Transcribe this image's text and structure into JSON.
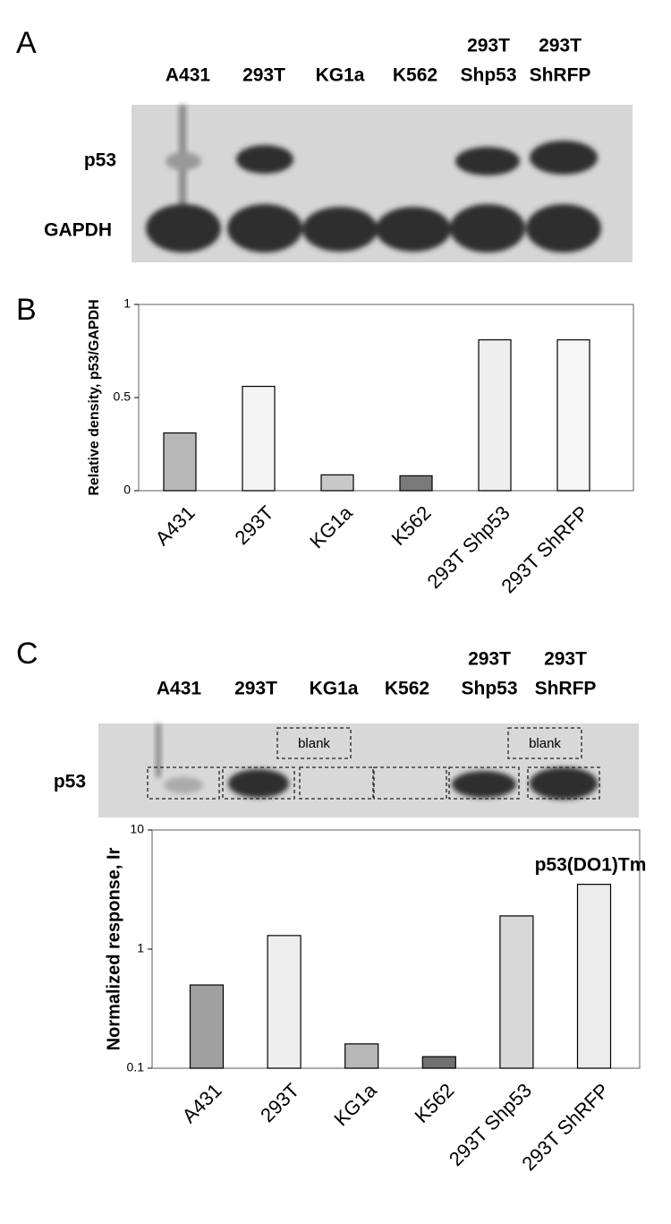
{
  "panels": {
    "A": {
      "letter": "A",
      "lanes": [
        "A431",
        "293T",
        "KG1a",
        "K562",
        [
          "293T",
          "Shp53"
        ],
        [
          "293T",
          "ShRFP"
        ]
      ],
      "rows": [
        "p53",
        "GAPDH"
      ]
    },
    "B": {
      "letter": "B"
    },
    "C": {
      "letter": "C",
      "lanes": [
        "A431",
        "293T",
        "KG1a",
        "K562",
        [
          "293T",
          "Shp53"
        ],
        [
          "293T",
          "ShRFP"
        ]
      ],
      "row": "p53",
      "blank": [
        "blank",
        "blank"
      ]
    }
  },
  "chart_data": [
    {
      "type": "bar",
      "y_label": "Relative density, p53/GAPDH",
      "categories": [
        "A431",
        "293T",
        "KG1a",
        "K562",
        "293T Shp53",
        "293T ShRFP"
      ],
      "values": [
        0.31,
        0.56,
        0.085,
        0.08,
        0.81,
        0.81
      ],
      "colors": [
        "#b8b8b8",
        "#f4f4f4",
        "#c8c8c8",
        "#7a7a7a",
        "#eeeeee",
        "#f6f6f6"
      ],
      "ylim": [
        0,
        1
      ],
      "yticks": [
        0,
        0.5,
        1
      ]
    },
    {
      "type": "bar",
      "y_label": "Normalized response, Ir",
      "annotation": "p53(DO1)Tm",
      "categories": [
        "A431",
        "293T",
        "KG1a",
        "K562",
        "293T Shp53",
        "293T ShRFP"
      ],
      "values": [
        0.5,
        1.3,
        0.16,
        0.125,
        1.9,
        3.5
      ],
      "colors": [
        "#a0a0a0",
        "#eeeeee",
        "#b8b8b8",
        "#707070",
        "#d8d8d8",
        "#ececec"
      ],
      "log_y": true,
      "ylim": [
        0.1,
        10
      ],
      "yticks": [
        0.1,
        1,
        10
      ]
    }
  ]
}
